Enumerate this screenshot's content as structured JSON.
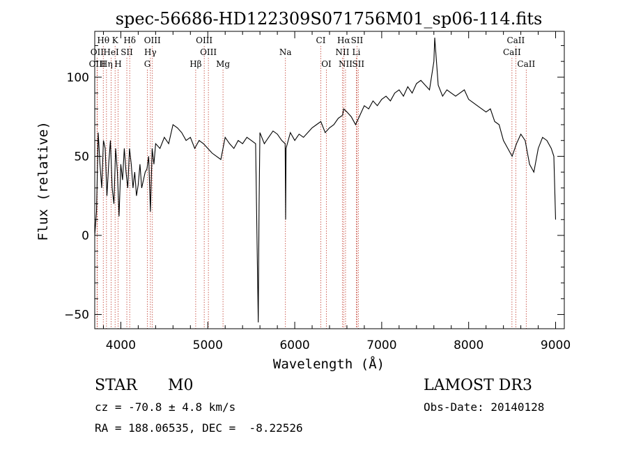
{
  "chart_data": {
    "type": "line",
    "title": "spec-56686-HD122309S071756M01_sp06-114.fits",
    "xlabel": "Wavelength (Å)",
    "ylabel": "Flux (relative)",
    "xlim": [
      3700,
      9100
    ],
    "ylim": [
      -59,
      129
    ],
    "x_ticks": [
      4000,
      5000,
      6000,
      7000,
      8000,
      9000
    ],
    "y_ticks": [
      -50,
      0,
      50,
      100
    ],
    "series": [
      {
        "name": "flux",
        "x": [
          3700,
          3720,
          3740,
          3760,
          3780,
          3800,
          3820,
          3840,
          3860,
          3880,
          3900,
          3920,
          3940,
          3960,
          3980,
          4000,
          4020,
          4040,
          4060,
          4080,
          4100,
          4120,
          4140,
          4160,
          4180,
          4200,
          4220,
          4240,
          4260,
          4280,
          4300,
          4320,
          4340,
          4360,
          4380,
          4400,
          4450,
          4500,
          4550,
          4600,
          4650,
          4700,
          4750,
          4800,
          4850,
          4900,
          4950,
          5000,
          5050,
          5100,
          5150,
          5200,
          5250,
          5300,
          5350,
          5400,
          5450,
          5500,
          5550,
          5580,
          5590,
          5600,
          5650,
          5700,
          5750,
          5800,
          5850,
          5890,
          5895,
          5900,
          5950,
          6000,
          6050,
          6100,
          6150,
          6200,
          6250,
          6300,
          6350,
          6400,
          6450,
          6500,
          6550,
          6563,
          6600,
          6650,
          6700,
          6750,
          6800,
          6850,
          6900,
          6950,
          7000,
          7050,
          7100,
          7150,
          7200,
          7250,
          7300,
          7350,
          7400,
          7450,
          7500,
          7550,
          7600,
          7610,
          7650,
          7700,
          7750,
          7800,
          7850,
          7900,
          7950,
          8000,
          8050,
          8100,
          8150,
          8200,
          8250,
          8300,
          8350,
          8400,
          8450,
          8500,
          8550,
          8600,
          8650,
          8700,
          8750,
          8800,
          8850,
          8900,
          8950,
          8980,
          9000
        ],
        "y": [
          0,
          15,
          65,
          45,
          30,
          60,
          55,
          25,
          45,
          60,
          30,
          20,
          55,
          40,
          12,
          45,
          35,
          55,
          40,
          30,
          55,
          45,
          30,
          40,
          25,
          32,
          45,
          30,
          35,
          40,
          42,
          50,
          15,
          55,
          45,
          58,
          55,
          62,
          58,
          70,
          68,
          65,
          60,
          62,
          55,
          60,
          58,
          55,
          52,
          50,
          48,
          62,
          58,
          55,
          60,
          58,
          62,
          60,
          58,
          -55,
          20,
          65,
          58,
          62,
          66,
          64,
          60,
          58,
          10,
          55,
          65,
          60,
          64,
          62,
          65,
          68,
          70,
          72,
          65,
          68,
          70,
          74,
          76,
          80,
          78,
          75,
          70,
          76,
          82,
          80,
          85,
          82,
          86,
          88,
          85,
          90,
          92,
          88,
          94,
          90,
          96,
          98,
          95,
          92,
          110,
          125,
          95,
          88,
          92,
          90,
          88,
          90,
          92,
          86,
          84,
          82,
          80,
          78,
          80,
          72,
          70,
          60,
          55,
          50,
          58,
          64,
          60,
          45,
          40,
          55,
          62,
          60,
          55,
          50,
          10
        ]
      }
    ],
    "line_labels": [
      {
        "label": "Hθ",
        "wavelength": 3798,
        "row": 1
      },
      {
        "label": "K",
        "wavelength": 3934,
        "row": 1
      },
      {
        "label": "Hδ",
        "wavelength": 4102,
        "row": 1
      },
      {
        "label": "OIII",
        "wavelength": 4363,
        "row": 1
      },
      {
        "label": "OIII",
        "wavelength": 4959,
        "row": 1
      },
      {
        "label": "CI",
        "wavelength": 6300,
        "row": 1
      },
      {
        "label": "Hα",
        "wavelength": 6563,
        "row": 1
      },
      {
        "label": "SII",
        "wavelength": 6716,
        "row": 1
      },
      {
        "label": "CaII",
        "wavelength": 8542,
        "row": 1
      },
      {
        "label": "OII",
        "wavelength": 3727,
        "row": 2
      },
      {
        "label": "HeI",
        "wavelength": 3889,
        "row": 2
      },
      {
        "label": "SII",
        "wavelength": 4069,
        "row": 2
      },
      {
        "label": "Hγ",
        "wavelength": 4340,
        "row": 2
      },
      {
        "label": "OIII",
        "wavelength": 5007,
        "row": 2
      },
      {
        "label": "Na",
        "wavelength": 5893,
        "row": 2
      },
      {
        "label": "NII",
        "wavelength": 6548,
        "row": 2
      },
      {
        "label": "Li",
        "wavelength": 6708,
        "row": 2
      },
      {
        "label": "CaII",
        "wavelength": 8498,
        "row": 2
      },
      {
        "label": "OIII",
        "wavelength": 3729,
        "row": 3
      },
      {
        "label": "Hη",
        "wavelength": 3835,
        "row": 3
      },
      {
        "label": "H",
        "wavelength": 3968,
        "row": 3
      },
      {
        "label": "G",
        "wavelength": 4305,
        "row": 3
      },
      {
        "label": "Hβ",
        "wavelength": 4861,
        "row": 3
      },
      {
        "label": "Mg",
        "wavelength": 5175,
        "row": 3
      },
      {
        "label": "OI",
        "wavelength": 6364,
        "row": 3
      },
      {
        "label": "NII",
        "wavelength": 6584,
        "row": 3
      },
      {
        "label": "SII",
        "wavelength": 6731,
        "row": 3
      },
      {
        "label": "CaII",
        "wavelength": 8662,
        "row": 3
      }
    ]
  },
  "info": {
    "class_label": "STAR",
    "subclass": "M0",
    "survey": "LAMOST DR3",
    "cz_text": "cz = -70.8 ± 4.8 km/s",
    "obs_date_text": "Obs-Date: 20140128",
    "coords_text": "RA = 188.06535, DEC =  -8.22526"
  },
  "colors": {
    "axis": "#000000",
    "spectrum": "#000000",
    "line_marker": "#c0392b"
  }
}
